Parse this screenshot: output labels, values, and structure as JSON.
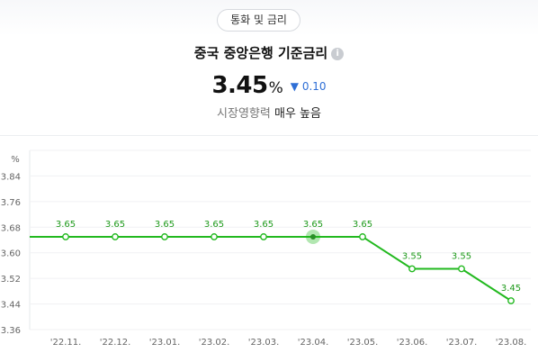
{
  "header": {
    "chip_label": "통화 및 금리",
    "title": "중국 중앙은행 기준금리",
    "info_icon": "info-icon",
    "value": "3.45",
    "unit": "%",
    "change_icon": "triangle-down-icon",
    "change": "0.10",
    "influence_label": "시장영향력",
    "influence_value": "매우 높음",
    "colors": {
      "down": "#2f6fd6",
      "line": "#22b91f"
    }
  },
  "chart_data": {
    "type": "line",
    "title": "",
    "xlabel": "",
    "ylabel": "%",
    "categories": [
      "'22.11.",
      "'22.12.",
      "'23.01.",
      "'23.02.",
      "'23.03.",
      "'23.04.",
      "'23.05.",
      "'23.06.",
      "'23.07.",
      "'23.08."
    ],
    "series": [
      {
        "values": [
          3.65,
          3.65,
          3.65,
          3.65,
          3.65,
          3.65,
          3.65,
          3.55,
          3.55,
          3.45
        ]
      }
    ],
    "data_labels": [
      "3.65",
      "3.65",
      "3.65",
      "3.65",
      "3.65",
      "3.65",
      "3.65",
      "3.55",
      "3.55",
      "3.45"
    ],
    "y_ticks": [
      "3.36",
      "3.44",
      "3.52",
      "3.60",
      "3.68",
      "3.76",
      "3.84"
    ],
    "y_tick_values": [
      3.36,
      3.44,
      3.52,
      3.6,
      3.68,
      3.76,
      3.84
    ],
    "ylim": [
      3.36,
      3.92
    ],
    "highlight_index": 5,
    "grid": true,
    "legend": "none"
  }
}
